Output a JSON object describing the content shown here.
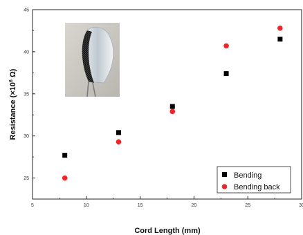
{
  "chart_data": {
    "type": "scatter",
    "xlabel": "Cord Length (mm)",
    "ylabel_parts": [
      "Resistance (×10",
      "6",
      " Ω)"
    ],
    "xlim": [
      5,
      30
    ],
    "ylim": [
      22.5,
      45
    ],
    "x_ticks": [
      5,
      10,
      15,
      20,
      25,
      30
    ],
    "x_tick_labels": [
      "5",
      "10",
      "15",
      "20",
      "25",
      "30"
    ],
    "y_ticks": [
      25,
      30,
      35,
      40,
      45
    ],
    "y_tick_labels": [
      "25",
      "30",
      "35",
      "40",
      "45"
    ],
    "grid": false,
    "legend_position": "bottom-right",
    "series": [
      {
        "name": "Bending",
        "marker": "square",
        "color": "#000000",
        "x": [
          8,
          13,
          18,
          23,
          28
        ],
        "y": [
          27.7,
          30.4,
          33.5,
          37.4,
          41.5
        ]
      },
      {
        "name": "Bending back",
        "marker": "circle",
        "color": "#e8282b",
        "x": [
          8,
          13,
          18,
          23,
          28
        ],
        "y": [
          25.0,
          29.3,
          32.9,
          40.7,
          42.8
        ]
      }
    ],
    "inset": "photo-of-bent-sensor-cord"
  }
}
